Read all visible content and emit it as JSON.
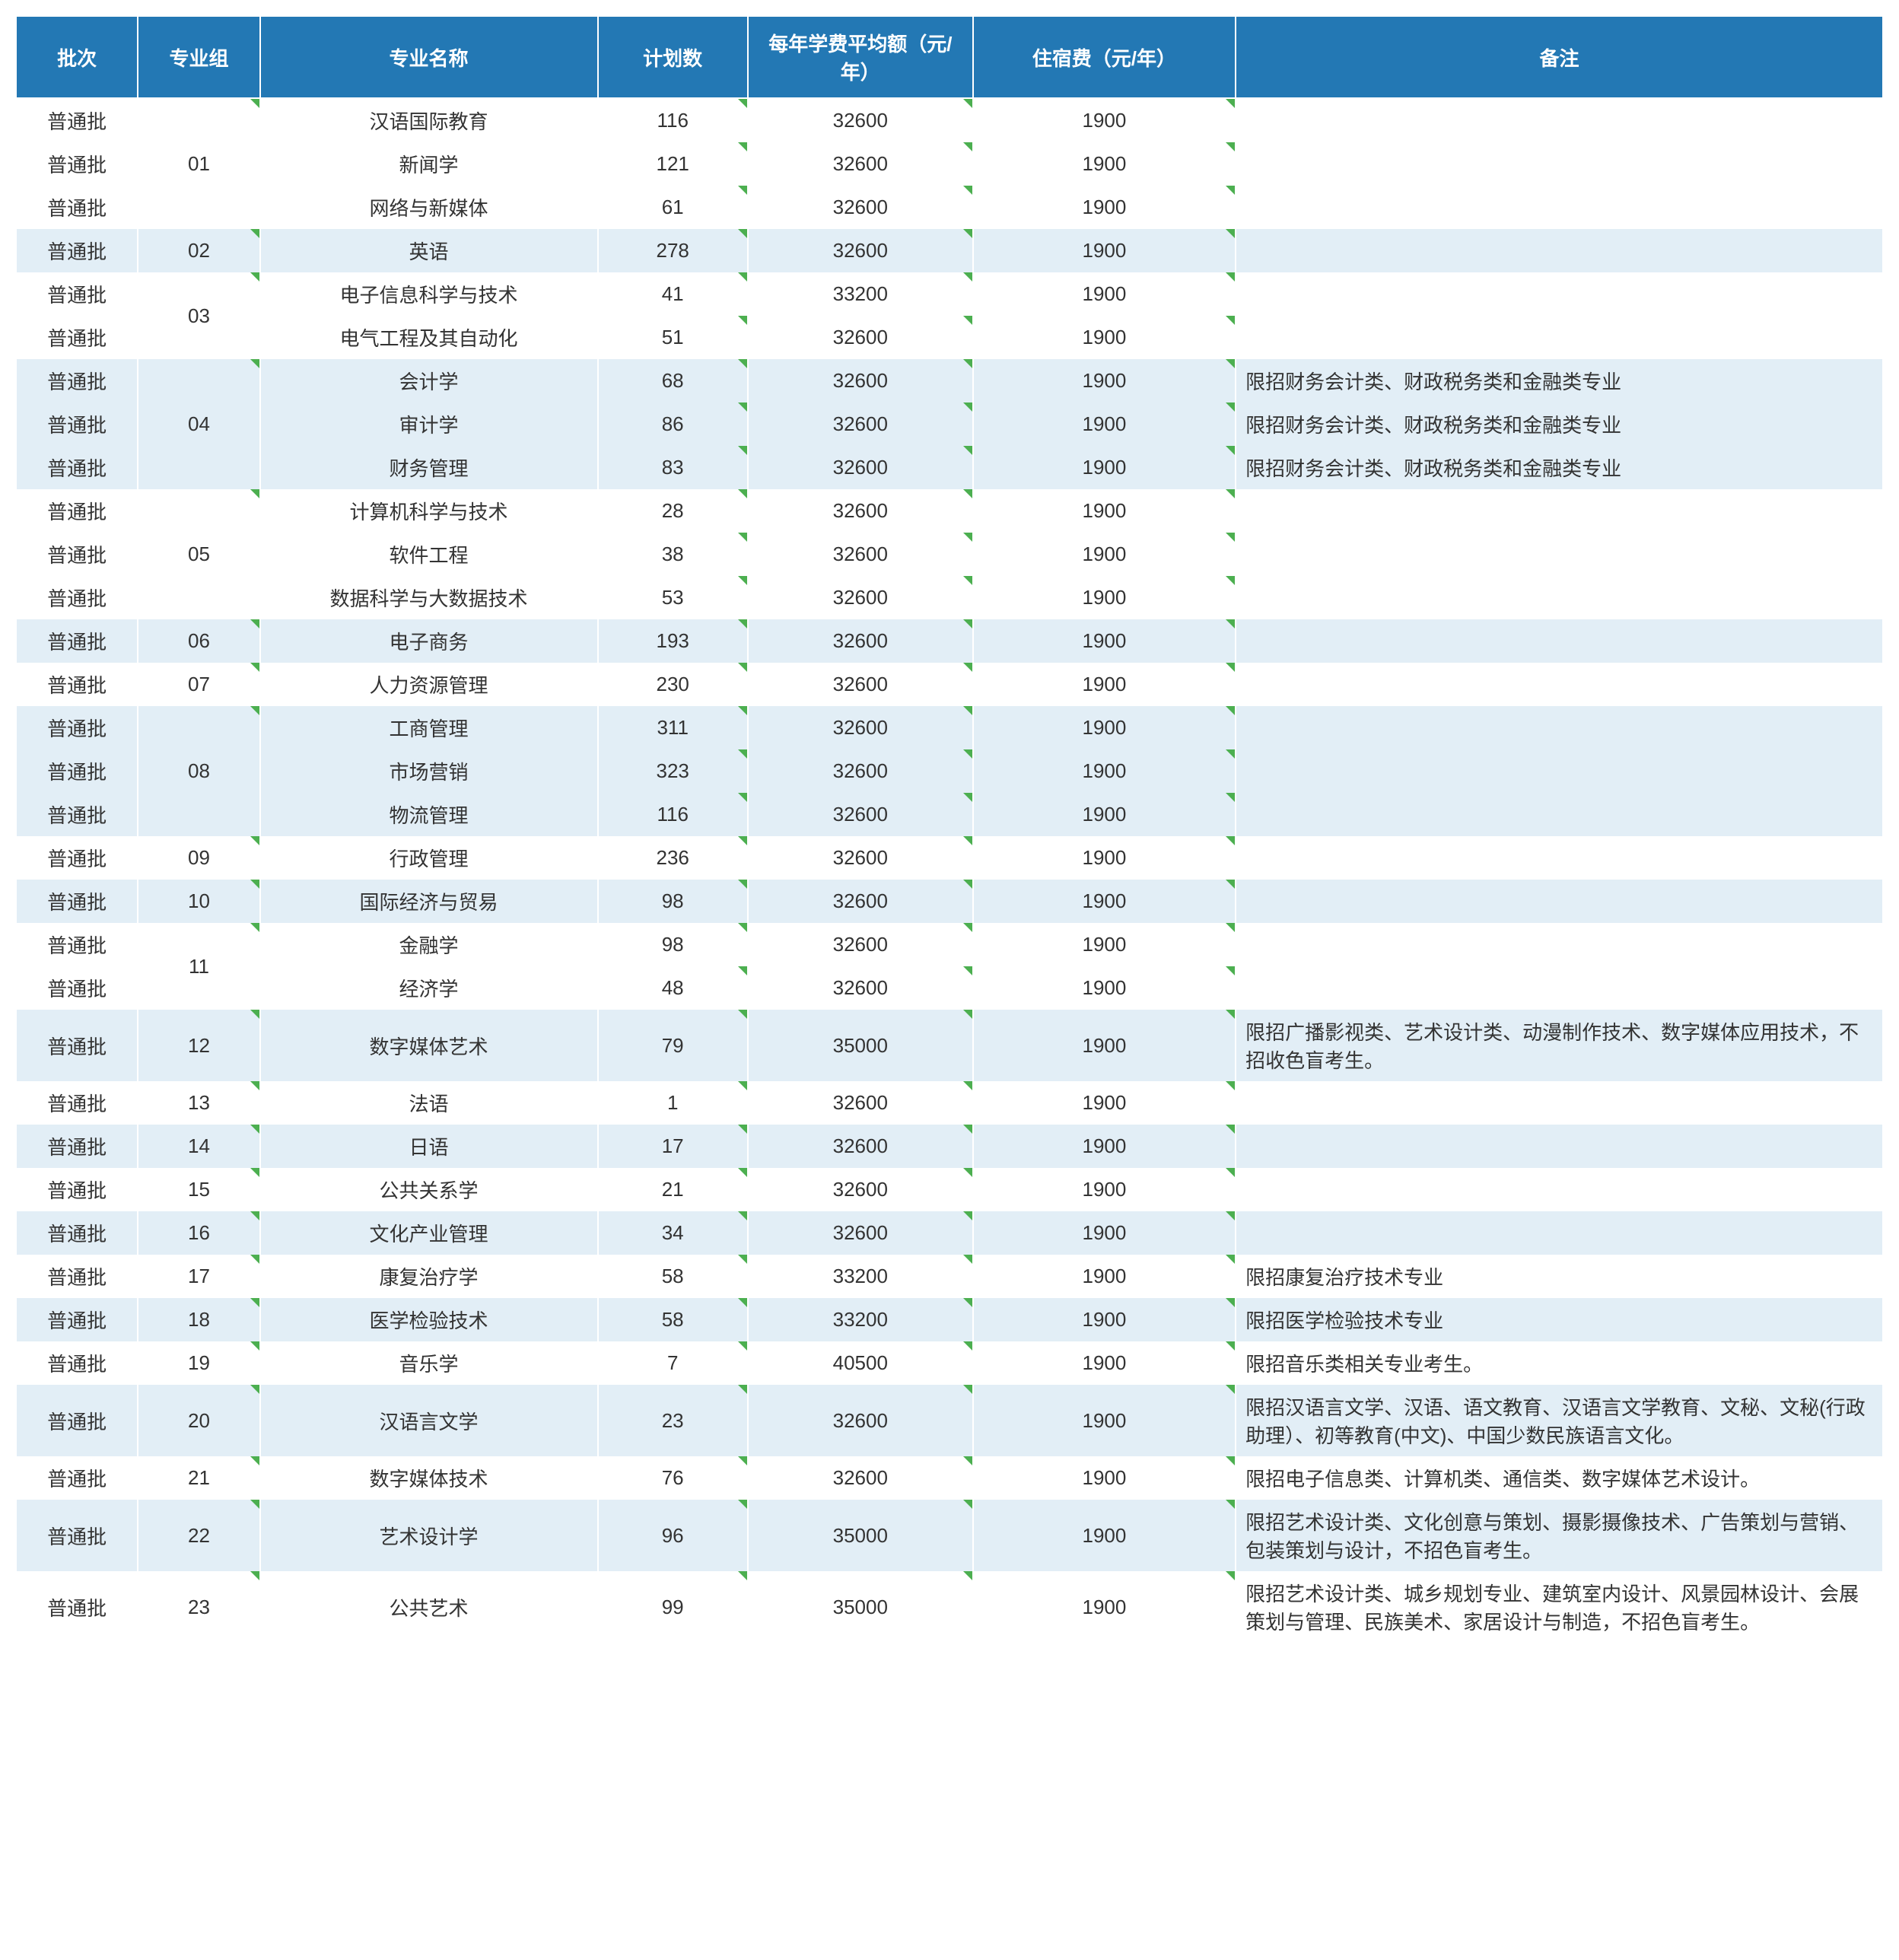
{
  "colors": {
    "header_bg": "#2378b4",
    "header_fg": "#ffffff",
    "band_white": "#ffffff",
    "band_blue": "#e2eef6",
    "tick_color": "#4caf50",
    "text_color": "#333333"
  },
  "columns": [
    {
      "key": "batch",
      "label": "批次",
      "class": "col-batch"
    },
    {
      "key": "group",
      "label": "专业组",
      "class": "col-group"
    },
    {
      "key": "major",
      "label": "专业名称",
      "class": "col-major"
    },
    {
      "key": "plan",
      "label": "计划数",
      "class": "col-plan"
    },
    {
      "key": "tuition",
      "label": "每年学费平均额（元/年）",
      "class": "col-tuition"
    },
    {
      "key": "dorm",
      "label": "住宿费（元/年）",
      "class": "col-dorm"
    },
    {
      "key": "remark",
      "label": "备注",
      "class": "col-remark"
    }
  ],
  "groups": [
    {
      "band": "white",
      "group": "01",
      "rows": [
        {
          "batch": "普通批",
          "major": "汉语国际教育",
          "plan": "116",
          "tuition": "32600",
          "dorm": "1900",
          "remark": ""
        },
        {
          "batch": "普通批",
          "major": "新闻学",
          "plan": "121",
          "tuition": "32600",
          "dorm": "1900",
          "remark": ""
        },
        {
          "batch": "普通批",
          "major": "网络与新媒体",
          "plan": "61",
          "tuition": "32600",
          "dorm": "1900",
          "remark": ""
        }
      ]
    },
    {
      "band": "blue",
      "group": "02",
      "rows": [
        {
          "batch": "普通批",
          "major": "英语",
          "plan": "278",
          "tuition": "32600",
          "dorm": "1900",
          "remark": ""
        }
      ]
    },
    {
      "band": "white",
      "group": "03",
      "rows": [
        {
          "batch": "普通批",
          "major": "电子信息科学与技术",
          "plan": "41",
          "tuition": "33200",
          "dorm": "1900",
          "remark": ""
        },
        {
          "batch": "普通批",
          "major": "电气工程及其自动化",
          "plan": "51",
          "tuition": "32600",
          "dorm": "1900",
          "remark": ""
        }
      ]
    },
    {
      "band": "blue",
      "group": "04",
      "rows": [
        {
          "batch": "普通批",
          "major": "会计学",
          "plan": "68",
          "tuition": "32600",
          "dorm": "1900",
          "remark": "限招财务会计类、财政税务类和金融类专业"
        },
        {
          "batch": "普通批",
          "major": "审计学",
          "plan": "86",
          "tuition": "32600",
          "dorm": "1900",
          "remark": "限招财务会计类、财政税务类和金融类专业"
        },
        {
          "batch": "普通批",
          "major": "财务管理",
          "plan": "83",
          "tuition": "32600",
          "dorm": "1900",
          "remark": "限招财务会计类、财政税务类和金融类专业"
        }
      ]
    },
    {
      "band": "white",
      "group": "05",
      "rows": [
        {
          "batch": "普通批",
          "major": "计算机科学与技术",
          "plan": "28",
          "tuition": "32600",
          "dorm": "1900",
          "remark": ""
        },
        {
          "batch": "普通批",
          "major": "软件工程",
          "plan": "38",
          "tuition": "32600",
          "dorm": "1900",
          "remark": ""
        },
        {
          "batch": "普通批",
          "major": "数据科学与大数据技术",
          "plan": "53",
          "tuition": "32600",
          "dorm": "1900",
          "remark": ""
        }
      ]
    },
    {
      "band": "blue",
      "group": "06",
      "rows": [
        {
          "batch": "普通批",
          "major": "电子商务",
          "plan": "193",
          "tuition": "32600",
          "dorm": "1900",
          "remark": ""
        }
      ]
    },
    {
      "band": "white",
      "group": "07",
      "rows": [
        {
          "batch": "普通批",
          "major": "人力资源管理",
          "plan": "230",
          "tuition": "32600",
          "dorm": "1900",
          "remark": ""
        }
      ]
    },
    {
      "band": "blue",
      "group": "08",
      "rows": [
        {
          "batch": "普通批",
          "major": "工商管理",
          "plan": "311",
          "tuition": "32600",
          "dorm": "1900",
          "remark": ""
        },
        {
          "batch": "普通批",
          "major": "市场营销",
          "plan": "323",
          "tuition": "32600",
          "dorm": "1900",
          "remark": ""
        },
        {
          "batch": "普通批",
          "major": "物流管理",
          "plan": "116",
          "tuition": "32600",
          "dorm": "1900",
          "remark": ""
        }
      ]
    },
    {
      "band": "white",
      "group": "09",
      "rows": [
        {
          "batch": "普通批",
          "major": "行政管理",
          "plan": "236",
          "tuition": "32600",
          "dorm": "1900",
          "remark": ""
        }
      ]
    },
    {
      "band": "blue",
      "group": "10",
      "rows": [
        {
          "batch": "普通批",
          "major": "国际经济与贸易",
          "plan": "98",
          "tuition": "32600",
          "dorm": "1900",
          "remark": ""
        }
      ]
    },
    {
      "band": "white",
      "group": "11",
      "rows": [
        {
          "batch": "普通批",
          "major": "金融学",
          "plan": "98",
          "tuition": "32600",
          "dorm": "1900",
          "remark": ""
        },
        {
          "batch": "普通批",
          "major": "经济学",
          "plan": "48",
          "tuition": "32600",
          "dorm": "1900",
          "remark": ""
        }
      ]
    },
    {
      "band": "blue",
      "group": "12",
      "rows": [
        {
          "batch": "普通批",
          "major": "数字媒体艺术",
          "plan": "79",
          "tuition": "35000",
          "dorm": "1900",
          "remark": "限招广播影视类、艺术设计类、动漫制作技术、数字媒体应用技术，不招收色盲考生。"
        }
      ]
    },
    {
      "band": "white",
      "group": "13",
      "rows": [
        {
          "batch": "普通批",
          "major": "法语",
          "plan": "1",
          "tuition": "32600",
          "dorm": "1900",
          "remark": ""
        }
      ]
    },
    {
      "band": "blue",
      "group": "14",
      "rows": [
        {
          "batch": "普通批",
          "major": "日语",
          "plan": "17",
          "tuition": "32600",
          "dorm": "1900",
          "remark": ""
        }
      ]
    },
    {
      "band": "white",
      "group": "15",
      "rows": [
        {
          "batch": "普通批",
          "major": "公共关系学",
          "plan": "21",
          "tuition": "32600",
          "dorm": "1900",
          "remark": ""
        }
      ]
    },
    {
      "band": "blue",
      "group": "16",
      "rows": [
        {
          "batch": "普通批",
          "major": "文化产业管理",
          "plan": "34",
          "tuition": "32600",
          "dorm": "1900",
          "remark": ""
        }
      ]
    },
    {
      "band": "white",
      "group": "17",
      "rows": [
        {
          "batch": "普通批",
          "major": "康复治疗学",
          "plan": "58",
          "tuition": "33200",
          "dorm": "1900",
          "remark": "限招康复治疗技术专业"
        }
      ]
    },
    {
      "band": "blue",
      "group": "18",
      "rows": [
        {
          "batch": "普通批",
          "major": "医学检验技术",
          "plan": "58",
          "tuition": "33200",
          "dorm": "1900",
          "remark": "限招医学检验技术专业"
        }
      ]
    },
    {
      "band": "white",
      "group": "19",
      "rows": [
        {
          "batch": "普通批",
          "major": "音乐学",
          "plan": "7",
          "tuition": "40500",
          "dorm": "1900",
          "remark": "限招音乐类相关专业考生。"
        }
      ]
    },
    {
      "band": "blue",
      "group": "20",
      "rows": [
        {
          "batch": "普通批",
          "major": "汉语言文学",
          "plan": "23",
          "tuition": "32600",
          "dorm": "1900",
          "remark": "限招汉语言文学、汉语、语文教育、汉语言文学教育、文秘、文秘(行政助理）、初等教育(中文)、中国少数民族语言文化。"
        }
      ]
    },
    {
      "band": "white",
      "group": "21",
      "rows": [
        {
          "batch": "普通批",
          "major": "数字媒体技术",
          "plan": "76",
          "tuition": "32600",
          "dorm": "1900",
          "remark": "限招电子信息类、计算机类、通信类、数字媒体艺术设计。"
        }
      ]
    },
    {
      "band": "blue",
      "group": "22",
      "rows": [
        {
          "batch": "普通批",
          "major": "艺术设计学",
          "plan": "96",
          "tuition": "35000",
          "dorm": "1900",
          "remark": "限招艺术设计类、文化创意与策划、摄影摄像技术、广告策划与营销、包装策划与设计，不招色盲考生。"
        }
      ]
    },
    {
      "band": "white",
      "group": "23",
      "rows": [
        {
          "batch": "普通批",
          "major": "公共艺术",
          "plan": "99",
          "tuition": "35000",
          "dorm": "1900",
          "remark": "限招艺术设计类、城乡规划专业、建筑室内设计、风景园林设计、会展策划与管理、民族美术、家居设计与制造，不招色盲考生。"
        }
      ]
    }
  ]
}
